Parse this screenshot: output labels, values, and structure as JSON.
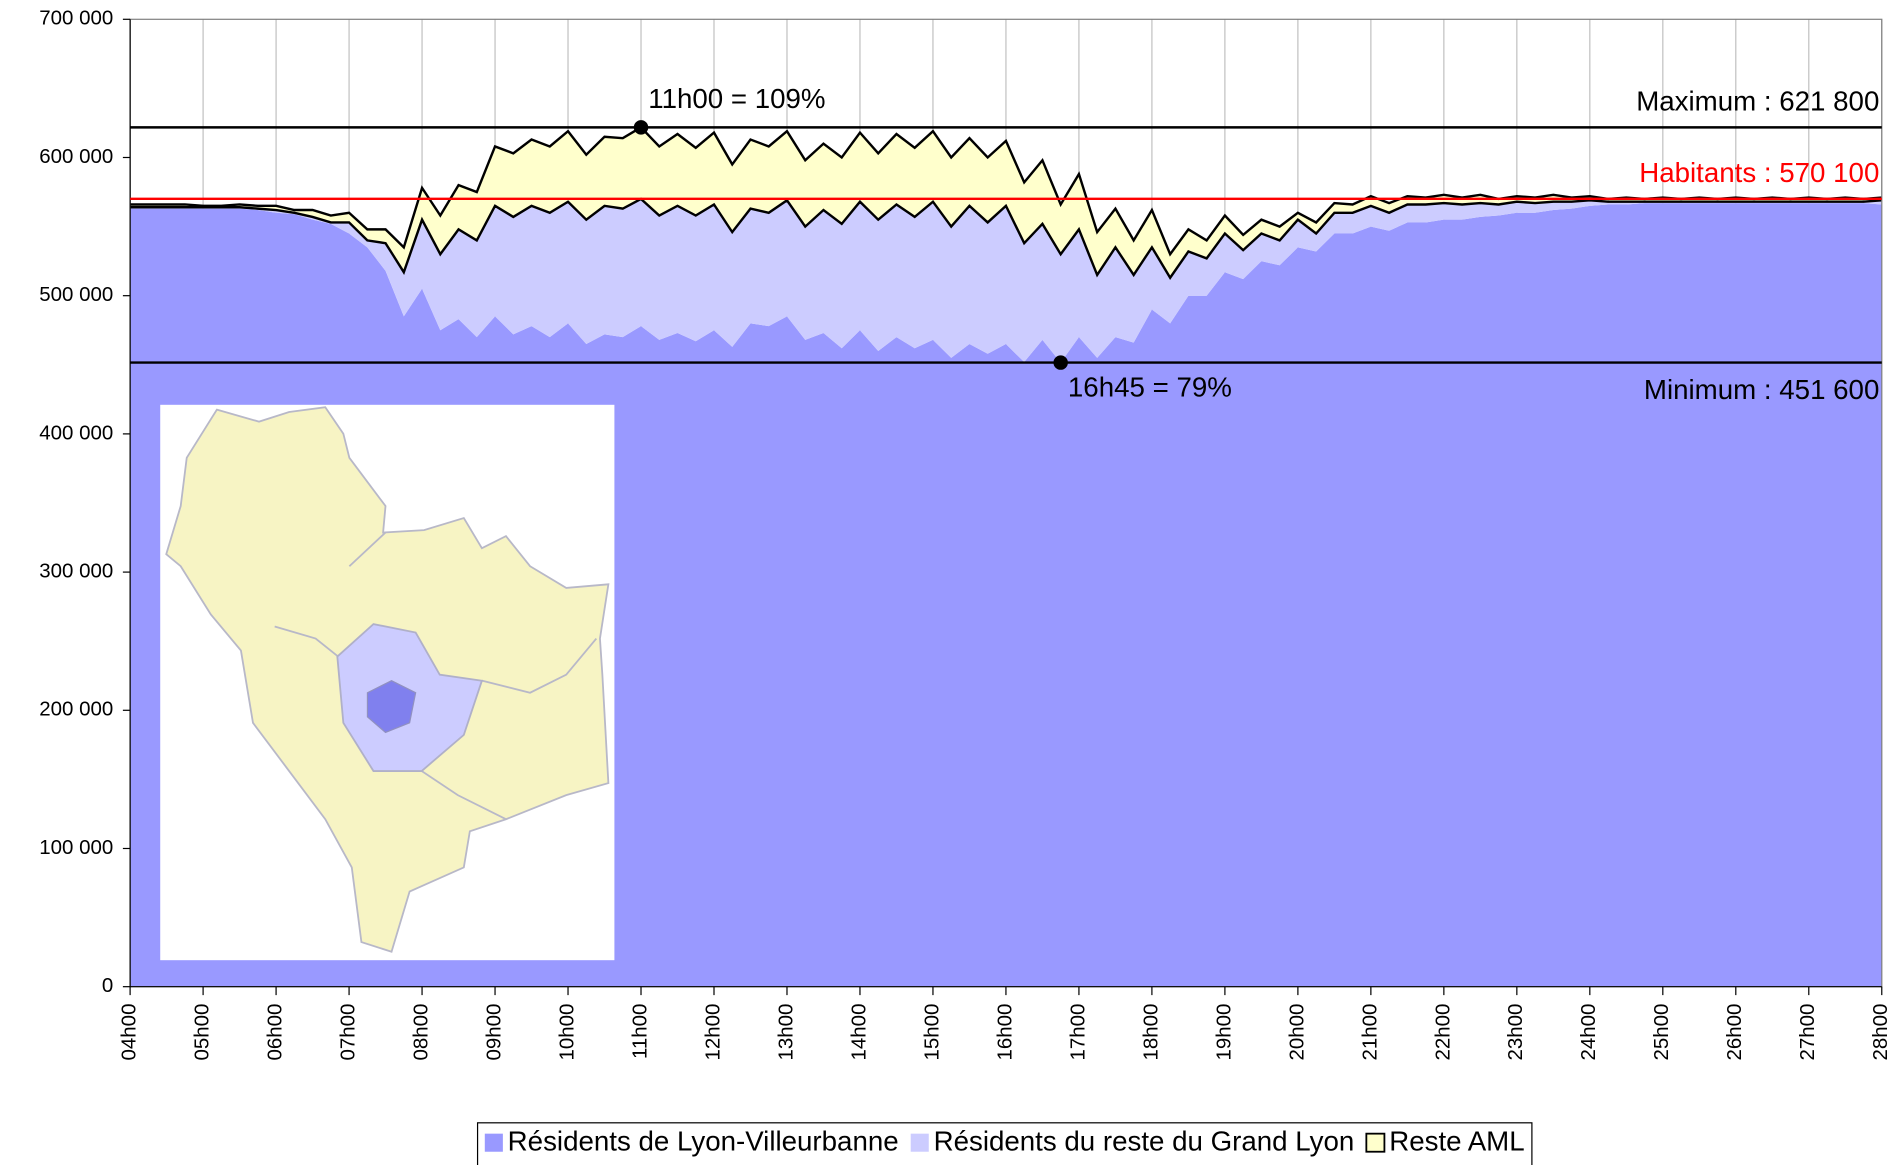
{
  "chart_data": {
    "type": "stacked_area",
    "x": [
      4,
      4.25,
      4.5,
      4.75,
      5,
      5.25,
      5.5,
      5.75,
      6,
      6.25,
      6.5,
      6.75,
      7,
      7.25,
      7.5,
      7.75,
      8,
      8.25,
      8.5,
      8.75,
      9,
      9.25,
      9.5,
      9.75,
      10,
      10.25,
      10.5,
      10.75,
      11,
      11.25,
      11.5,
      11.75,
      12,
      12.25,
      12.5,
      12.75,
      13,
      13.25,
      13.5,
      13.75,
      14,
      14.25,
      14.5,
      14.75,
      15,
      15.25,
      15.5,
      15.75,
      16,
      16.25,
      16.5,
      16.75,
      17,
      17.25,
      17.5,
      17.75,
      18,
      18.25,
      18.5,
      18.75,
      19,
      19.25,
      19.5,
      19.75,
      20,
      20.25,
      20.5,
      20.75,
      21,
      21.25,
      21.5,
      21.75,
      22,
      22.25,
      22.5,
      22.75,
      23,
      23.25,
      23.5,
      23.75,
      24,
      24.25,
      24.5,
      24.75,
      25,
      25.25,
      25.5,
      25.75,
      26,
      26.25,
      26.5,
      26.75,
      27,
      27.25,
      27.5,
      27.75,
      28
    ],
    "series": [
      {
        "name": "Résidents de Lyon-Villeurbanne",
        "color": "#9999ff",
        "values": [
          563000,
          563000,
          563000,
          563000,
          563000,
          563000,
          563000,
          562000,
          560000,
          559000,
          555000,
          552000,
          545000,
          535000,
          518000,
          485000,
          505000,
          475000,
          483000,
          470000,
          485000,
          472000,
          478000,
          470000,
          480000,
          465000,
          472000,
          470000,
          478000,
          468000,
          473000,
          467000,
          475000,
          463000,
          480000,
          478000,
          485000,
          468000,
          473000,
          462000,
          475000,
          460000,
          470000,
          462000,
          468000,
          455000,
          465000,
          458000,
          465000,
          452000,
          468000,
          451600,
          470000,
          455000,
          470000,
          466000,
          490000,
          480000,
          500000,
          500000,
          517000,
          512000,
          525000,
          522000,
          535000,
          532000,
          545000,
          545000,
          550000,
          547000,
          553000,
          553000,
          555000,
          555000,
          557000,
          558000,
          560000,
          560000,
          562000,
          563000,
          565000,
          566000,
          566000,
          567000,
          567000,
          567000,
          567000,
          567000,
          567000,
          567000,
          567000,
          567000,
          567000,
          567000,
          567000,
          567000,
          566000
        ]
      },
      {
        "name": "Résidents du reste du Grand Lyon",
        "color": "#ccccff",
        "outline": true,
        "values": [
          1000,
          1000,
          1000,
          1000,
          1000,
          1000,
          1000,
          1000,
          2000,
          1000,
          2000,
          1000,
          8000,
          5000,
          20000,
          32000,
          50000,
          55000,
          65000,
          70000,
          80000,
          85000,
          87000,
          90000,
          88000,
          90000,
          93000,
          93000,
          92000,
          90000,
          92000,
          91000,
          91000,
          83000,
          83000,
          82000,
          84000,
          82000,
          89000,
          90000,
          93000,
          95000,
          96000,
          95000,
          100000,
          95000,
          100000,
          95000,
          100000,
          86000,
          84000,
          78400,
          78000,
          60000,
          65000,
          49000,
          45000,
          33000,
          32000,
          27000,
          28000,
          21000,
          20000,
          18000,
          20000,
          13000,
          15000,
          15000,
          15000,
          13000,
          13000,
          13000,
          12000,
          11000,
          10000,
          8000,
          8000,
          7000,
          6000,
          5000,
          4000,
          2000,
          2000,
          1000,
          1000,
          1000,
          1000,
          1000,
          1000,
          1000,
          1000,
          1000,
          1000,
          1000,
          1000,
          1000,
          3000
        ]
      },
      {
        "name": "Reste AML",
        "color": "#ffffcc",
        "outline": true,
        "values": [
          2000,
          2000,
          2000,
          2000,
          1000,
          1000,
          2000,
          2000,
          3000,
          2000,
          5000,
          5000,
          7000,
          8000,
          10000,
          18000,
          23000,
          28000,
          32000,
          35000,
          43000,
          46000,
          48000,
          48000,
          51000,
          47000,
          50000,
          51000,
          51800,
          50000,
          52000,
          49000,
          52000,
          49000,
          50000,
          48000,
          50000,
          48000,
          48000,
          48000,
          50000,
          48000,
          51000,
          50000,
          51000,
          50000,
          49000,
          47000,
          47000,
          44000,
          46000,
          36000,
          40000,
          31000,
          28000,
          25000,
          27000,
          17000,
          16000,
          13000,
          13000,
          11000,
          10000,
          10000,
          5000,
          8000,
          7000,
          6000,
          7000,
          7000,
          6000,
          5000,
          6000,
          5000,
          6000,
          4000,
          4000,
          4000,
          5000,
          3000,
          3000,
          2000,
          3000,
          2000,
          3000,
          2000,
          3000,
          2000,
          3000,
          2000,
          3000,
          2000,
          3000,
          2000,
          3000,
          2000,
          2000
        ]
      }
    ],
    "xlim": [
      4,
      28
    ],
    "xticks": [
      {
        "value": 4,
        "label": "04h00"
      },
      {
        "value": 5,
        "label": "05h00"
      },
      {
        "value": 6,
        "label": "06h00"
      },
      {
        "value": 7,
        "label": "07h00"
      },
      {
        "value": 8,
        "label": "08h00"
      },
      {
        "value": 9,
        "label": "09h00"
      },
      {
        "value": 10,
        "label": "10h00"
      },
      {
        "value": 11,
        "label": "11h00"
      },
      {
        "value": 12,
        "label": "12h00"
      },
      {
        "value": 13,
        "label": "13h00"
      },
      {
        "value": 14,
        "label": "14h00"
      },
      {
        "value": 15,
        "label": "15h00"
      },
      {
        "value": 16,
        "label": "16h00"
      },
      {
        "value": 17,
        "label": "17h00"
      },
      {
        "value": 18,
        "label": "18h00"
      },
      {
        "value": 19,
        "label": "19h00"
      },
      {
        "value": 20,
        "label": "20h00"
      },
      {
        "value": 21,
        "label": "21h00"
      },
      {
        "value": 22,
        "label": "22h00"
      },
      {
        "value": 23,
        "label": "23h00"
      },
      {
        "value": 24,
        "label": "24h00"
      },
      {
        "value": 25,
        "label": "25h00"
      },
      {
        "value": 26,
        "label": "26h00"
      },
      {
        "value": 27,
        "label": "27h00"
      },
      {
        "value": 28,
        "label": "28h00"
      }
    ],
    "ylim": [
      0,
      700000
    ],
    "yticks": [
      0,
      {
        "value": 100000,
        "label": "100 000"
      },
      {
        "value": 200000,
        "label": "200 000"
      },
      {
        "value": 300000,
        "label": "300 000"
      },
      {
        "value": 400000,
        "label": "400 000"
      },
      {
        "value": 500000,
        "label": "500 000"
      },
      {
        "value": 600000,
        "label": "600 000"
      },
      {
        "value": 700000,
        "label": "700 000"
      }
    ],
    "x_grid": true,
    "hlines": [
      {
        "value": 621800,
        "label": "Maximum : 621 800",
        "color": "#000000"
      },
      {
        "value": 570100,
        "label": "Habitants : 570 100",
        "color": "#ff0000"
      },
      {
        "value": 451600,
        "label": "Minimum : 451 600",
        "color": "#000000"
      }
    ],
    "annotations": [
      {
        "x": 11,
        "y": 621800,
        "text": "11h00 = 109%"
      },
      {
        "x": 16.75,
        "y": 451600,
        "text": "16h45 = 79%"
      }
    ],
    "legend": "bottom"
  }
}
